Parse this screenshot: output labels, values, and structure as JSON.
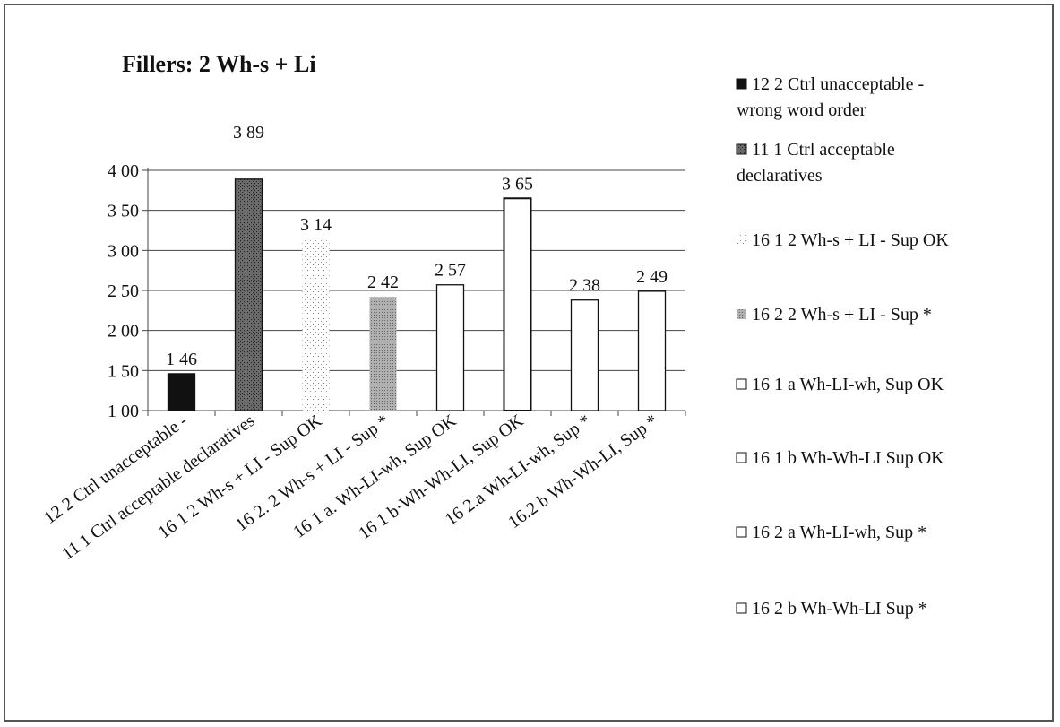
{
  "chart_data": {
    "type": "bar",
    "title": "Fillers: 2 Wh-s + Li",
    "xlabel": "",
    "ylabel": "",
    "ylim": [
      1.0,
      4.0
    ],
    "yticks": [
      "1 00",
      "1 50",
      "2 00",
      "2 50",
      "3 00",
      "3 50",
      "4 00"
    ],
    "grid": "horizontal",
    "legend_position": "right",
    "categories": [
      "12 2 Ctrl unacceptable -",
      "11 1 Ctrl acceptable declaratives",
      "16 1 2 Wh-s + LI - Sup OK",
      "16 2. 2 Wh-s + LI - Sup *",
      "16 1 a. Wh-LI-wh, Sup OK",
      "16 1 b·Wh-Wh-LI, Sup OK",
      "16 2.a Wh-LI-wh, Sup *",
      "16.2 b Wh-Wh-LI, Sup *"
    ],
    "values": [
      1.46,
      3.89,
      3.14,
      2.42,
      2.57,
      3.65,
      2.38,
      2.49
    ],
    "data_labels": [
      "1 46",
      "3 89",
      "3 14",
      "2 42",
      "2 57",
      "3 65",
      "2 38",
      "2 49"
    ],
    "series": [
      {
        "name": "12 2  Ctrl unacceptable - wrong word order",
        "fill": "#111111",
        "pattern": "solid"
      },
      {
        "name": "11 1  Ctrl acceptable declaratives",
        "fill": "#555555",
        "pattern": "dark-dots"
      },
      {
        "name": "16 1  2 Wh-s + LI - Sup OK",
        "fill": "#ffffff",
        "pattern": "light-dots"
      },
      {
        "name": "16 2  2 Wh-s + LI - Sup *",
        "fill": "#9a9a9a",
        "pattern": "medium-dots"
      },
      {
        "name": "16 1 a  Wh-LI-wh, Sup OK",
        "fill": "#ffffff",
        "pattern": "outline"
      },
      {
        "name": "16 1 b  Wh-Wh-LI  Sup OK",
        "fill": "#ffffff",
        "pattern": "outline-thick"
      },
      {
        "name": "16 2 a  Wh-LI-wh, Sup *",
        "fill": "#ffffff",
        "pattern": "outline"
      },
      {
        "name": "16 2 b  Wh-Wh-LI  Sup *",
        "fill": "#ffffff",
        "pattern": "outline"
      }
    ]
  }
}
